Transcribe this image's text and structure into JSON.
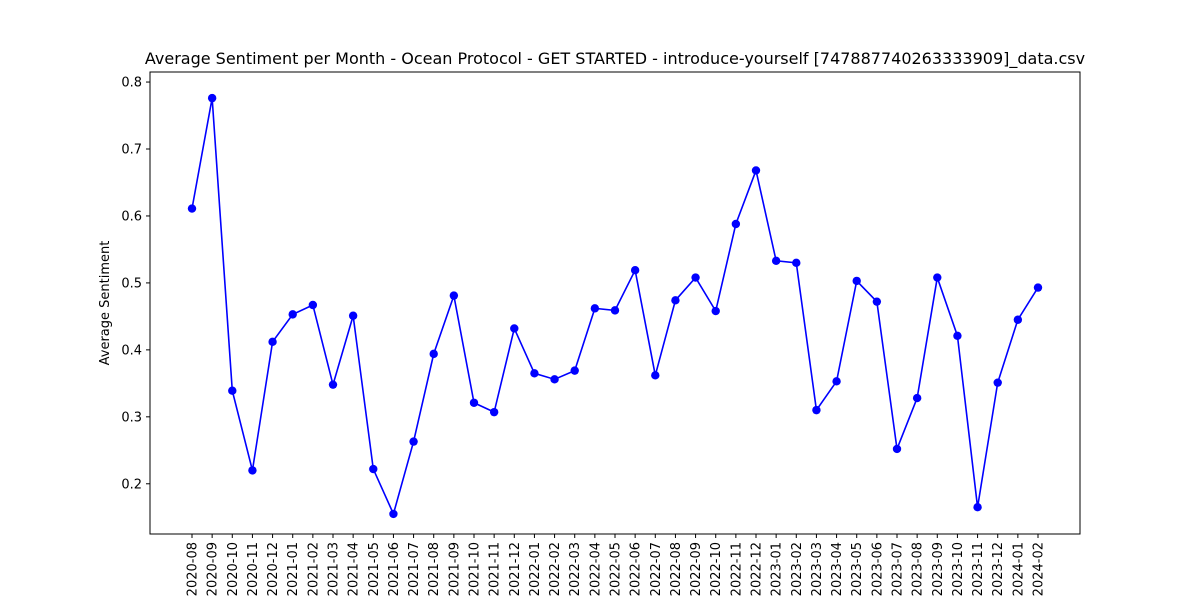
{
  "chart_data": {
    "type": "line",
    "title": "Average Sentiment per Month - Ocean Protocol - GET STARTED - introduce-yourself [747887740263333909]_data.csv",
    "xlabel": "",
    "ylabel": "Average Sentiment",
    "ylim": [
      0.125,
      0.815
    ],
    "yticks": [
      0.2,
      0.3,
      0.4,
      0.5,
      0.6,
      0.7,
      0.8
    ],
    "ytick_labels": [
      "0.2",
      "0.3",
      "0.4",
      "0.5",
      "0.6",
      "0.7",
      "0.8"
    ],
    "grid": false,
    "legend": "none",
    "line_color": "#0000ff",
    "marker_color": "#0000ff",
    "categories": [
      "2020-08",
      "2020-09",
      "2020-10",
      "2020-11",
      "2020-12",
      "2021-01",
      "2021-02",
      "2021-03",
      "2021-04",
      "2021-05",
      "2021-06",
      "2021-07",
      "2021-08",
      "2021-09",
      "2021-10",
      "2021-11",
      "2021-12",
      "2022-01",
      "2022-02",
      "2022-03",
      "2022-04",
      "2022-05",
      "2022-06",
      "2022-07",
      "2022-08",
      "2022-09",
      "2022-10",
      "2022-11",
      "2022-12",
      "2023-01",
      "2023-02",
      "2023-03",
      "2023-04",
      "2023-05",
      "2023-06",
      "2023-07",
      "2023-08",
      "2023-09",
      "2023-10",
      "2023-11",
      "2023-12",
      "2024-01",
      "2024-02"
    ],
    "values": [
      0.611,
      0.776,
      0.339,
      0.22,
      0.412,
      0.453,
      0.467,
      0.348,
      0.451,
      0.222,
      0.155,
      0.263,
      0.394,
      0.481,
      0.321,
      0.307,
      0.432,
      0.365,
      0.356,
      0.369,
      0.462,
      0.459,
      0.519,
      0.362,
      0.474,
      0.508,
      0.458,
      0.588,
      0.668,
      0.533,
      0.53,
      0.31,
      0.353,
      0.503,
      0.472,
      0.252,
      0.328,
      0.508,
      0.421,
      0.165,
      0.351,
      0.445,
      0.493
    ]
  }
}
